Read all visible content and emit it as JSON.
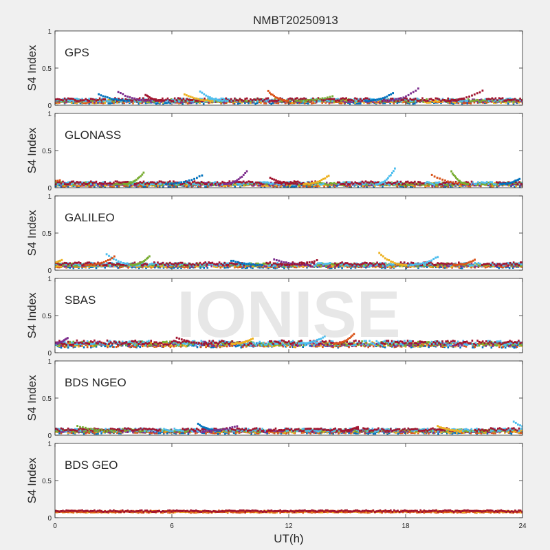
{
  "figure": {
    "title": "NMBT20250913",
    "watermark": "IONISE",
    "xlabel": "UT(h)",
    "ylabel": "S4 Index"
  },
  "colors": [
    "#0072bd",
    "#d95319",
    "#edb120",
    "#7e2f8e",
    "#77ac30",
    "#4dbeee",
    "#a2142f"
  ],
  "chart_data": [
    {
      "type": "scatter",
      "panel": "GPS",
      "xlabel": "",
      "ylabel": "S4 Index",
      "xlim": [
        0,
        24
      ],
      "ylim": [
        0,
        1
      ],
      "xticks": [
        0,
        6,
        12,
        18,
        24
      ],
      "yticks": [
        0,
        0.5,
        1
      ],
      "baseline_s4": 0.06,
      "noise": 0.02,
      "events": [
        {
          "t": 2.2,
          "s4": 0.15
        },
        {
          "t": 3.2,
          "s4": 0.18
        },
        {
          "t": 4.6,
          "s4": 0.14
        },
        {
          "t": 6.6,
          "s4": 0.15
        },
        {
          "t": 7.4,
          "s4": 0.18
        },
        {
          "t": 10.9,
          "s4": 0.19
        },
        {
          "t": 14.2,
          "s4": 0.12
        },
        {
          "t": 17.3,
          "s4": 0.16
        },
        {
          "t": 18.6,
          "s4": 0.22
        },
        {
          "t": 21.9,
          "s4": 0.2
        }
      ]
    },
    {
      "type": "scatter",
      "panel": "GLONASS",
      "xlabel": "",
      "ylabel": "S4 Index",
      "xlim": [
        0,
        24
      ],
      "ylim": [
        0,
        1
      ],
      "xticks": [
        0,
        6,
        12,
        18,
        24
      ],
      "yticks": [
        0,
        0.5,
        1
      ],
      "baseline_s4": 0.05,
      "noise": 0.02,
      "events": [
        {
          "t": 0.2,
          "s4": 0.1
        },
        {
          "t": 4.5,
          "s4": 0.2
        },
        {
          "t": 7.5,
          "s4": 0.17
        },
        {
          "t": 9.8,
          "s4": 0.22
        },
        {
          "t": 11.0,
          "s4": 0.13
        },
        {
          "t": 14.0,
          "s4": 0.16
        },
        {
          "t": 17.4,
          "s4": 0.26
        },
        {
          "t": 19.3,
          "s4": 0.17
        },
        {
          "t": 20.3,
          "s4": 0.22
        },
        {
          "t": 23.8,
          "s4": 0.12
        }
      ]
    },
    {
      "type": "scatter",
      "panel": "GALILEO",
      "xlabel": "",
      "ylabel": "S4 Index",
      "xlim": [
        0,
        24
      ],
      "ylim": [
        0,
        1
      ],
      "xticks": [
        0,
        6,
        12,
        18,
        24
      ],
      "yticks": [
        0,
        0.5,
        1
      ],
      "baseline_s4": 0.07,
      "noise": 0.02,
      "events": [
        {
          "t": 0.3,
          "s4": 0.14
        },
        {
          "t": 2.6,
          "s4": 0.21
        },
        {
          "t": 3.0,
          "s4": 0.18
        },
        {
          "t": 4.8,
          "s4": 0.19
        },
        {
          "t": 9.0,
          "s4": 0.13
        },
        {
          "t": 11.2,
          "s4": 0.15
        },
        {
          "t": 13.4,
          "s4": 0.13
        },
        {
          "t": 16.6,
          "s4": 0.23
        },
        {
          "t": 19.6,
          "s4": 0.18
        },
        {
          "t": 21.5,
          "s4": 0.14
        }
      ]
    },
    {
      "type": "scatter",
      "panel": "SBAS",
      "xlabel": "",
      "ylabel": "S4 Index",
      "xlim": [
        0,
        24
      ],
      "ylim": [
        0,
        1
      ],
      "xticks": [
        0,
        6,
        12,
        18,
        24
      ],
      "yticks": [
        0,
        0.5,
        1
      ],
      "baseline_s4": 0.12,
      "noise": 0.03,
      "events": [
        {
          "t": 0.6,
          "s4": 0.2
        },
        {
          "t": 6.2,
          "s4": 0.2
        },
        {
          "t": 10.1,
          "s4": 0.19
        },
        {
          "t": 13.8,
          "s4": 0.22
        },
        {
          "t": 15.3,
          "s4": 0.25
        }
      ]
    },
    {
      "type": "scatter",
      "panel": "BDS NGEO",
      "xlabel": "",
      "ylabel": "S4 Index",
      "xlim": [
        0,
        24
      ],
      "ylim": [
        0,
        1
      ],
      "xticks": [
        0,
        6,
        12,
        18,
        24
      ],
      "yticks": [
        0,
        0.5,
        1
      ],
      "baseline_s4": 0.06,
      "noise": 0.02,
      "events": [
        {
          "t": 1.1,
          "s4": 0.12
        },
        {
          "t": 7.3,
          "s4": 0.15
        },
        {
          "t": 9.3,
          "s4": 0.12
        },
        {
          "t": 15.5,
          "s4": 0.11
        },
        {
          "t": 19.6,
          "s4": 0.12
        },
        {
          "t": 23.5,
          "s4": 0.18
        }
      ]
    },
    {
      "type": "scatter",
      "panel": "BDS GEO",
      "xlabel": "UT(h)",
      "ylabel": "S4 Index",
      "xlim": [
        0,
        24
      ],
      "ylim": [
        0,
        1
      ],
      "xticks": [
        0,
        6,
        12,
        18,
        24
      ],
      "yticks": [
        0,
        0.5,
        1
      ],
      "baseline_s4": 0.085,
      "noise": 0.01,
      "events": []
    }
  ]
}
